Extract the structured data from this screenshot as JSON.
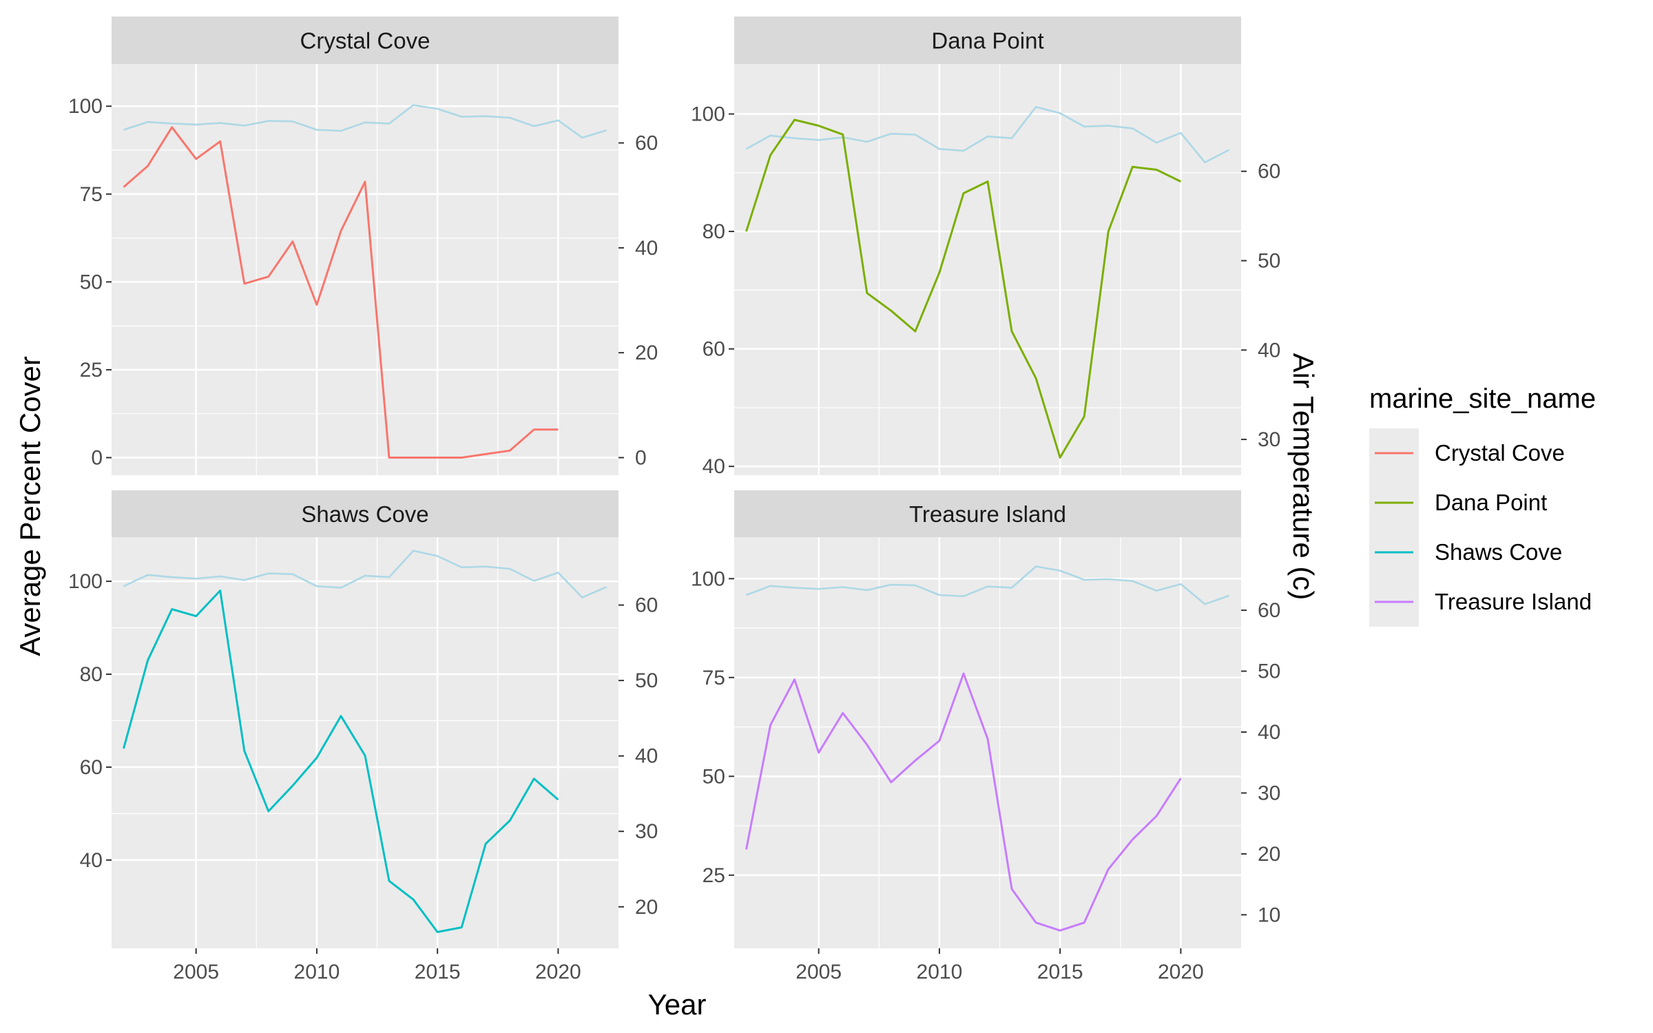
{
  "chart_data": {
    "type": "line",
    "facet_var": "marine_site_name",
    "xlabel": "Year",
    "ylabel": "Average Percent Cover",
    "y2label": "Air Temperature (c)",
    "legend": {
      "title": "marine_site_name",
      "placement": "right",
      "entries": [
        {
          "name": "Crystal Cove",
          "color": "#F8766D"
        },
        {
          "name": "Dana Point",
          "color": "#7CAE00"
        },
        {
          "name": "Shaws Cove",
          "color": "#00BFC4"
        },
        {
          "name": "Treasure Island",
          "color": "#C77CFF"
        }
      ]
    },
    "colors": {
      "panel_bg": "#EBEBEB",
      "grid": "#FFFFFF",
      "strip_bg": "#D9D9D9",
      "temperature_line": "#ADD8E6"
    },
    "grid": true,
    "x_ticks": [
      2005,
      2010,
      2015,
      2020
    ],
    "xlim": [
      2001.5,
      2022.5
    ],
    "temperature": {
      "name": "Air Temperature (c)",
      "x": [
        2002,
        2003,
        2004,
        2005,
        2006,
        2007,
        2008,
        2009,
        2010,
        2011,
        2012,
        2013,
        2014,
        2015,
        2016,
        2017,
        2018,
        2019,
        2020,
        2021,
        2022
      ],
      "values": [
        62.5,
        64,
        63.7,
        63.5,
        63.8,
        63.3,
        64.2,
        64.1,
        62.5,
        62.3,
        63.9,
        63.7,
        67.2,
        66.5,
        65,
        65.1,
        64.8,
        63.2,
        64.3,
        61,
        62.4
      ]
    },
    "panels": [
      {
        "title": "Crystal Cove",
        "ylim": [
          -5,
          112
        ],
        "y_ticks": [
          0,
          25,
          50,
          75,
          100
        ],
        "y2lim": [
          -3.35,
          75.04
        ],
        "y2_ticks": [
          0,
          20,
          40,
          60
        ],
        "series": {
          "name": "Crystal Cove",
          "color": "#F8766D",
          "x": [
            2002,
            2003,
            2004,
            2005,
            2006,
            2007,
            2008,
            2009,
            2010,
            2011,
            2012,
            2013,
            2014,
            2015,
            2016,
            2017,
            2018,
            2019,
            2020
          ],
          "values": [
            77,
            83,
            94,
            85,
            90,
            49.5,
            51.5,
            61.5,
            43.5,
            64.5,
            78.5,
            0,
            0,
            0,
            0,
            1,
            2,
            8,
            8
          ]
        }
      },
      {
        "title": "Dana Point",
        "ylim": [
          38.5,
          108.5
        ],
        "y_ticks": [
          40,
          60,
          80,
          100
        ],
        "y2lim": [
          26,
          72
        ],
        "y2_ticks": [
          30,
          40,
          50,
          60
        ],
        "series": {
          "name": "Dana Point",
          "color": "#7CAE00",
          "x": [
            2002,
            2003,
            2004,
            2005,
            2006,
            2007,
            2008,
            2009,
            2010,
            2011,
            2012,
            2013,
            2014,
            2015,
            2016,
            2017,
            2018,
            2019,
            2020
          ],
          "values": [
            80,
            93,
            99,
            98,
            96.5,
            69.5,
            66.5,
            63,
            73,
            86.5,
            88.5,
            63,
            55,
            41.5,
            48.5,
            80,
            91,
            90.5,
            88.5
          ]
        }
      },
      {
        "title": "Shaws Cove",
        "ylim": [
          21,
          109.5
        ],
        "y2_ticks": [
          20,
          30,
          40,
          50,
          60
        ],
        "y2lim": [
          14.5,
          69
        ],
        "y_ticks": [
          40,
          60,
          80,
          100
        ],
        "series": {
          "name": "Shaws Cove",
          "color": "#00BFC4",
          "x": [
            2002,
            2003,
            2004,
            2005,
            2006,
            2007,
            2008,
            2009,
            2010,
            2011,
            2012,
            2013,
            2014,
            2015,
            2016,
            2017,
            2018,
            2019,
            2020
          ],
          "values": [
            64,
            83,
            94,
            92.5,
            98,
            63.5,
            50.5,
            56,
            62,
            71,
            62.5,
            35.5,
            31.5,
            24.5,
            25.5,
            43.5,
            48.5,
            57.5,
            53
          ]
        }
      },
      {
        "title": "Treasure Island",
        "ylim": [
          6.5,
          110.5
        ],
        "y_ticks": [
          25,
          50,
          75,
          100
        ],
        "y2lim": [
          4.5,
          72
        ],
        "y2_ticks": [
          10,
          20,
          30,
          40,
          50,
          60
        ],
        "series": {
          "name": "Treasure Island",
          "color": "#C77CFF",
          "x": [
            2002,
            2003,
            2004,
            2005,
            2006,
            2007,
            2008,
            2009,
            2010,
            2011,
            2012,
            2013,
            2014,
            2015,
            2016,
            2017,
            2018,
            2019,
            2020
          ],
          "values": [
            31.5,
            63,
            74.5,
            56,
            66,
            58,
            48.5,
            54,
            59,
            76,
            59.5,
            21.5,
            13,
            11,
            13,
            26.5,
            34,
            40,
            49.5
          ]
        }
      }
    ]
  }
}
